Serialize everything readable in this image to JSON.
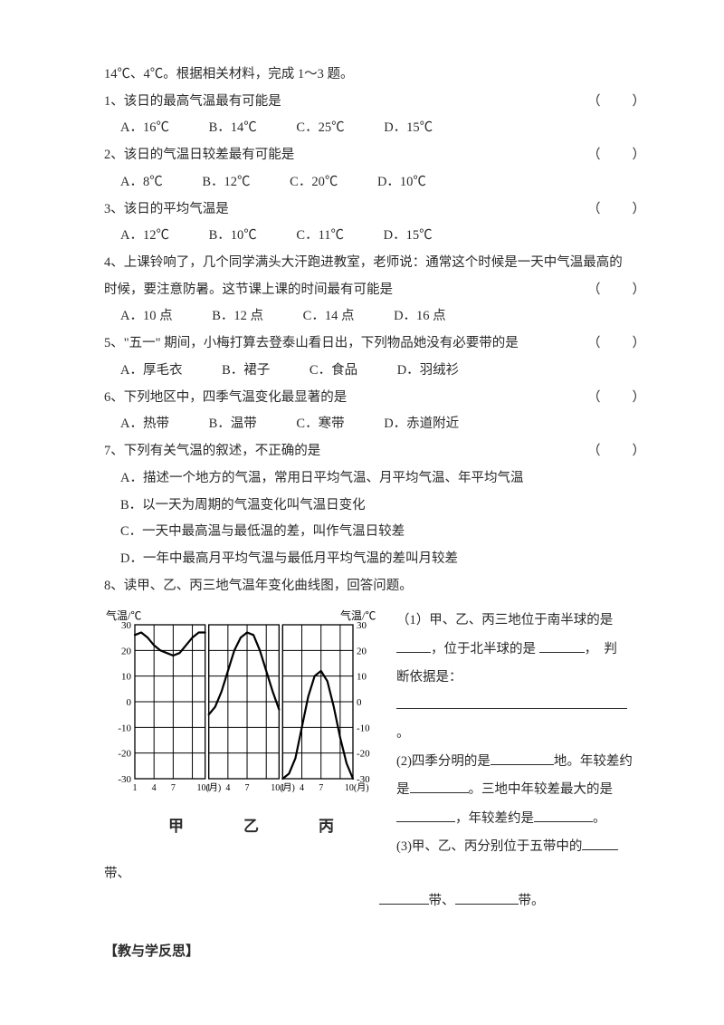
{
  "intro": "14℃、4℃。根据相关材料，完成 1～3 题。",
  "q1": {
    "text": "1、该日的最高气温最有可能是",
    "opts": [
      "A．16℃",
      "B．14℃",
      "C．25℃",
      "D．15℃"
    ]
  },
  "q2": {
    "text": "2、该日的气温日较差最有可能是",
    "opts": [
      "A．8℃",
      "B．12℃",
      "C．20℃",
      "D．10℃"
    ]
  },
  "q3": {
    "text": "3、该日的平均气温是",
    "opts": [
      "A．12℃",
      "B．10℃",
      "C．11℃",
      "D．15℃"
    ]
  },
  "q4": {
    "line1": "4、上课铃响了，几个同学满头大汗跑进教室，老师说：通常这个时候是一天中气温最高的",
    "line2": "时候，要注意防暑。这节课上课的时间最有可能是",
    "opts": [
      "A．10 点",
      "B．12 点",
      "C．14 点",
      "D．16 点"
    ]
  },
  "q5": {
    "text": "5、\"五一\" 期间，小梅打算去登泰山看日出，下列物品她没有必要带的是",
    "opts": [
      "A．厚毛衣",
      "B．裙子",
      "C．食品",
      "D．羽绒衫"
    ]
  },
  "q6": {
    "text": "6、下列地区中，四季气温变化最显著的是",
    "opts": [
      "A．热带",
      "B．温带",
      "C．寒带",
      "D．赤道附近"
    ]
  },
  "q7": {
    "text": "7、下列有关气温的叙述，不正确的是",
    "a": "A．描述一个地方的气温，常用日平均气温、月平均气温、年平均气温",
    "b": "B．以一天为周期的气温变化叫气温日变化",
    "c": "C．一天中最高温与最低温的差，叫作气温日较差",
    "d": "D．一年中最高月平均气温与最低月平均气温的差叫月较差"
  },
  "q8": {
    "intro": "8、读甲、乙、丙三地气温年变化曲线图，回答问题。",
    "p1a": "（1）甲、乙、丙三地位于南半球的是",
    "p1b": "，位于北半球的是 ",
    "p1c": "，　判",
    "p1d": "断依据是：",
    "p2a": "(2)四季分明的是",
    "p2b": "地。年较差约",
    "p2c": "是",
    "p2d": "。三地中年较差最大的是",
    "p2e": "，年较差约是",
    "p2f": "。",
    "p3a": "(3)甲、乙、丙分别位于五带中的",
    "tail": "带、",
    "last1": "带、",
    "last2": "带。"
  },
  "reflect": "【教与学反思】",
  "paren": "（　　）",
  "chart": {
    "ylabel_l": "气温/℃",
    "ylabel_r": "气温/℃",
    "yticks": [
      30,
      20,
      10,
      0,
      -10,
      -20,
      -30
    ],
    "xticks": [
      "1",
      "4",
      "7",
      "10(月)"
    ],
    "labels": [
      "甲",
      "乙",
      "丙"
    ],
    "grid_color": "#000000",
    "line_color": "#000000",
    "bg": "#ffffff",
    "series": {
      "jia": [
        [
          1,
          26
        ],
        [
          2,
          27
        ],
        [
          3,
          25
        ],
        [
          4,
          22
        ],
        [
          5,
          20
        ],
        [
          6,
          19
        ],
        [
          7,
          18
        ],
        [
          8,
          19
        ],
        [
          9,
          22
        ],
        [
          10,
          25
        ],
        [
          11,
          27
        ],
        [
          12,
          27
        ]
      ],
      "yi": [
        [
          1,
          -5
        ],
        [
          2,
          -2
        ],
        [
          3,
          4
        ],
        [
          4,
          12
        ],
        [
          5,
          20
        ],
        [
          6,
          25
        ],
        [
          7,
          27
        ],
        [
          8,
          26
        ],
        [
          9,
          20
        ],
        [
          10,
          12
        ],
        [
          11,
          4
        ],
        [
          12,
          -3
        ]
      ],
      "bing": [
        [
          1,
          -30
        ],
        [
          2,
          -28
        ],
        [
          3,
          -22
        ],
        [
          4,
          -10
        ],
        [
          5,
          2
        ],
        [
          6,
          10
        ],
        [
          7,
          12
        ],
        [
          8,
          8
        ],
        [
          9,
          -2
        ],
        [
          10,
          -14
        ],
        [
          11,
          -24
        ],
        [
          12,
          -30
        ]
      ]
    }
  }
}
